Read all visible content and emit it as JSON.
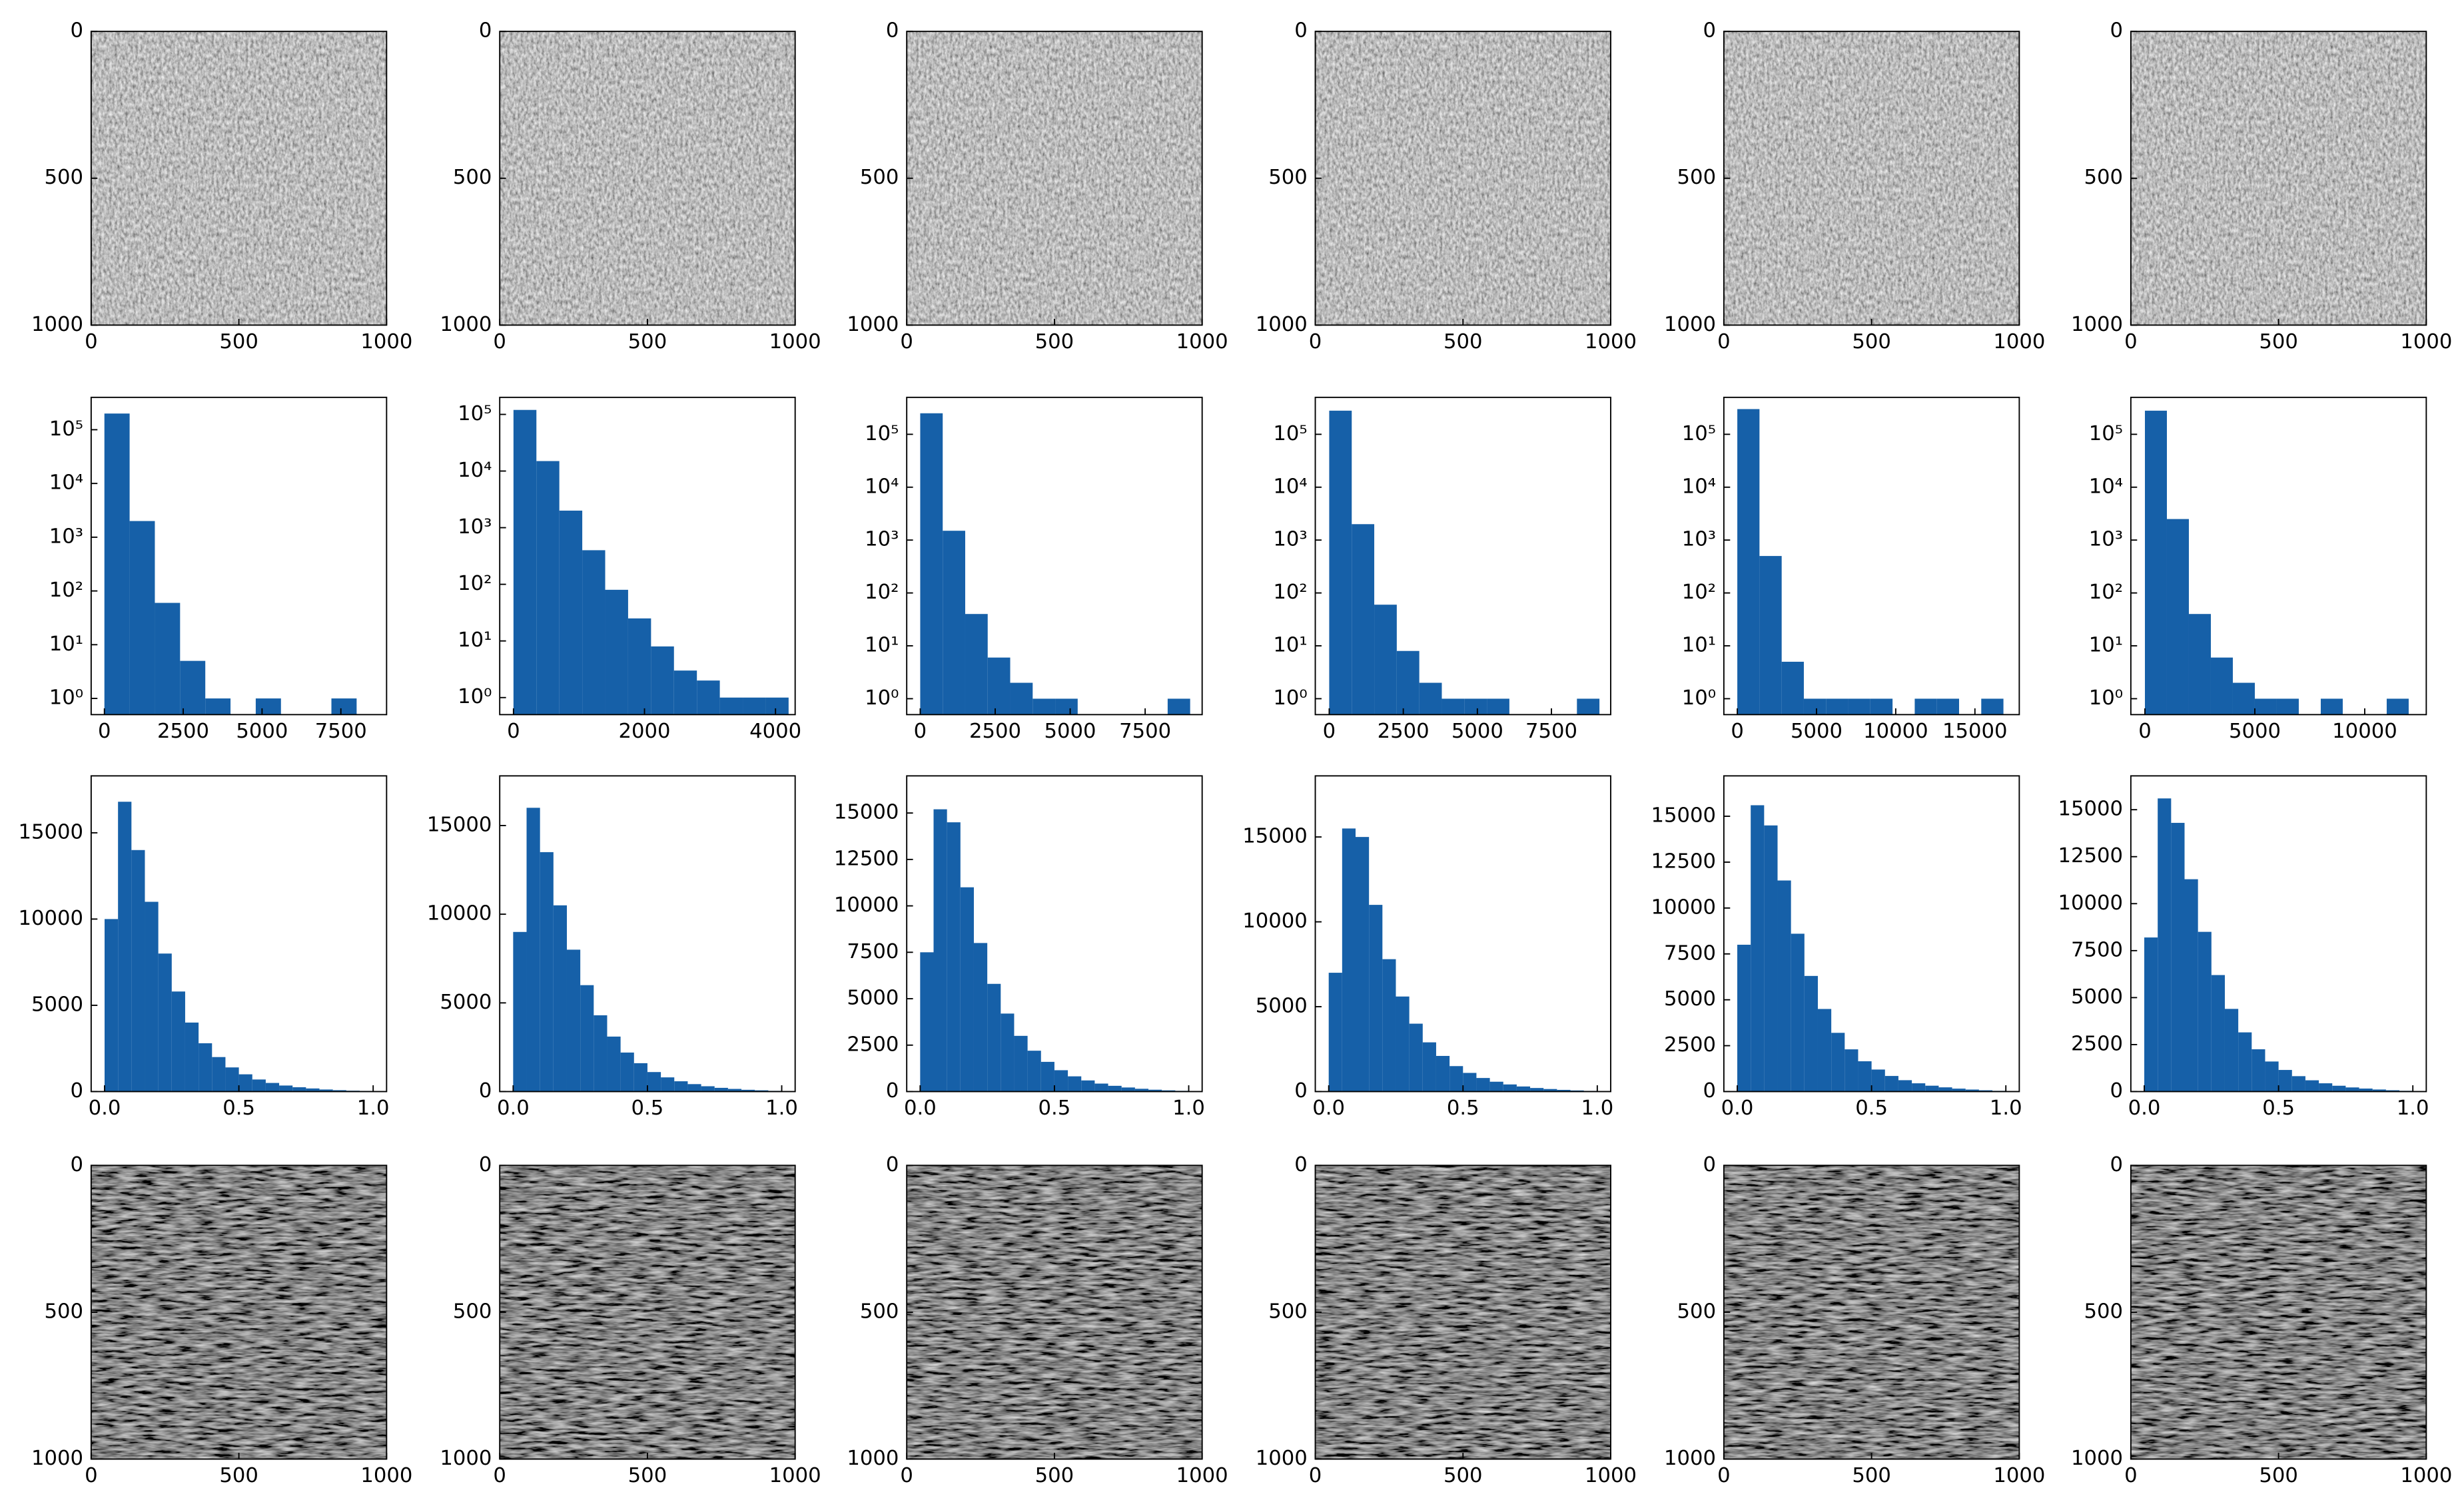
{
  "chart_data": [
    {
      "type": "image",
      "xlim": [
        0,
        1000
      ],
      "ylim": [
        1000,
        0
      ],
      "xticks": [
        0,
        500,
        1000
      ],
      "yticks": [
        0,
        500,
        1000
      ]
    },
    {
      "type": "image",
      "xlim": [
        0,
        1000
      ],
      "ylim": [
        1000,
        0
      ],
      "xticks": [
        0,
        500,
        1000
      ],
      "yticks": [
        0,
        500,
        1000
      ]
    },
    {
      "type": "image",
      "xlim": [
        0,
        1000
      ],
      "ylim": [
        1000,
        0
      ],
      "xticks": [
        0,
        500,
        1000
      ],
      "yticks": [
        0,
        500,
        1000
      ]
    },
    {
      "type": "image",
      "xlim": [
        0,
        1000
      ],
      "ylim": [
        1000,
        0
      ],
      "xticks": [
        0,
        500,
        1000
      ],
      "yticks": [
        0,
        500,
        1000
      ]
    },
    {
      "type": "image",
      "xlim": [
        0,
        1000
      ],
      "ylim": [
        1000,
        0
      ],
      "xticks": [
        0,
        500,
        1000
      ],
      "yticks": [
        0,
        500,
        1000
      ]
    },
    {
      "type": "image",
      "xlim": [
        0,
        1000
      ],
      "ylim": [
        1000,
        0
      ],
      "xticks": [
        0,
        500,
        1000
      ],
      "yticks": [
        0,
        500,
        1000
      ]
    },
    {
      "type": "histogram",
      "log_y": true,
      "color": "#1660a8",
      "bins": [
        0,
        800,
        1600,
        2400,
        3200,
        4000,
        4800,
        5600,
        6400,
        7200,
        8000,
        8800
      ],
      "values": [
        200000,
        2000,
        60,
        5,
        1,
        0,
        1,
        0,
        0,
        1,
        0
      ],
      "xlim": [
        -420,
        8950
      ],
      "ylim": [
        0.5,
        400000
      ],
      "xticks": [
        0,
        2500,
        5000,
        7500
      ],
      "yticks": [
        {
          "value": 1,
          "label": "10⁰"
        },
        {
          "value": 10,
          "label": "10¹"
        },
        {
          "value": 100,
          "label": "10²"
        },
        {
          "value": 1000,
          "label": "10³"
        },
        {
          "value": 10000,
          "label": "10⁴"
        },
        {
          "value": 100000,
          "label": "10⁵"
        }
      ]
    },
    {
      "type": "histogram",
      "log_y": true,
      "color": "#1660a8",
      "bins": [
        0,
        350,
        700,
        1050,
        1400,
        1750,
        2100,
        2450,
        2800,
        3150,
        3500,
        3850,
        4200
      ],
      "values": [
        120000,
        15000,
        2000,
        400,
        80,
        25,
        8,
        3,
        2,
        1,
        1,
        1
      ],
      "xlim": [
        -210,
        4300
      ],
      "ylim": [
        0.5,
        200000
      ],
      "xticks": [
        0,
        2000,
        4000
      ],
      "yticks": [
        {
          "value": 1,
          "label": "10⁰"
        },
        {
          "value": 10,
          "label": "10¹"
        },
        {
          "value": 100,
          "label": "10²"
        },
        {
          "value": 1000,
          "label": "10³"
        },
        {
          "value": 10000,
          "label": "10⁴"
        },
        {
          "value": 100000,
          "label": "10⁵"
        }
      ]
    },
    {
      "type": "histogram",
      "log_y": true,
      "color": "#1660a8",
      "bins": [
        0,
        750,
        1500,
        2250,
        3000,
        3750,
        4500,
        5250,
        6000,
        6750,
        7500,
        8250,
        9000
      ],
      "values": [
        250000,
        1500,
        40,
        6,
        2,
        1,
        1,
        0,
        0,
        0,
        0,
        1
      ],
      "xlim": [
        -450,
        9400
      ],
      "ylim": [
        0.5,
        500000
      ],
      "xticks": [
        0,
        2500,
        5000,
        7500
      ],
      "yticks": [
        {
          "value": 1,
          "label": "10⁰"
        },
        {
          "value": 10,
          "label": "10¹"
        },
        {
          "value": 100,
          "label": "10²"
        },
        {
          "value": 1000,
          "label": "10³"
        },
        {
          "value": 10000,
          "label": "10⁴"
        },
        {
          "value": 100000,
          "label": "10⁵"
        }
      ]
    },
    {
      "type": "histogram",
      "log_y": true,
      "color": "#1660a8",
      "bins": [
        0,
        760,
        1520,
        2280,
        3040,
        3800,
        4560,
        5320,
        6080,
        6840,
        7600,
        8360,
        9120
      ],
      "values": [
        280000,
        2000,
        60,
        8,
        2,
        1,
        1,
        1,
        0,
        0,
        0,
        1
      ],
      "xlim": [
        -470,
        9500
      ],
      "ylim": [
        0.5,
        500000
      ],
      "xticks": [
        0,
        2500,
        5000,
        7500
      ],
      "yticks": [
        {
          "value": 1,
          "label": "10⁰"
        },
        {
          "value": 10,
          "label": "10¹"
        },
        {
          "value": 100,
          "label": "10²"
        },
        {
          "value": 1000,
          "label": "10³"
        },
        {
          "value": 10000,
          "label": "10⁴"
        },
        {
          "value": 100000,
          "label": "10⁵"
        }
      ]
    },
    {
      "type": "histogram",
      "log_y": true,
      "color": "#1660a8",
      "bins": [
        0,
        1400,
        2800,
        4200,
        5600,
        7000,
        8400,
        9800,
        11200,
        12600,
        14000,
        15400,
        16800
      ],
      "values": [
        300000,
        500,
        5,
        1,
        1,
        1,
        1,
        0,
        1,
        1,
        0,
        1
      ],
      "xlim": [
        -850,
        17800
      ],
      "ylim": [
        0.5,
        500000
      ],
      "xticks": [
        0,
        5000,
        10000,
        15000
      ],
      "yticks": [
        {
          "value": 1,
          "label": "10⁰"
        },
        {
          "value": 10,
          "label": "10¹"
        },
        {
          "value": 100,
          "label": "10²"
        },
        {
          "value": 1000,
          "label": "10³"
        },
        {
          "value": 10000,
          "label": "10⁴"
        },
        {
          "value": 100000,
          "label": "10⁵"
        }
      ]
    },
    {
      "type": "histogram",
      "log_y": true,
      "color": "#1660a8",
      "bins": [
        0,
        1000,
        2000,
        3000,
        4000,
        5000,
        6000,
        7000,
        8000,
        9000,
        10000,
        11000,
        12000
      ],
      "values": [
        280000,
        2500,
        40,
        6,
        2,
        1,
        1,
        0,
        1,
        0,
        0,
        1
      ],
      "xlim": [
        -640,
        12800
      ],
      "ylim": [
        0.5,
        500000
      ],
      "xticks": [
        0,
        5000,
        10000
      ],
      "yticks": [
        {
          "value": 1,
          "label": "10⁰"
        },
        {
          "value": 10,
          "label": "10¹"
        },
        {
          "value": 100,
          "label": "10²"
        },
        {
          "value": 1000,
          "label": "10³"
        },
        {
          "value": 10000,
          "label": "10⁴"
        },
        {
          "value": 100000,
          "label": "10⁵"
        }
      ]
    },
    {
      "type": "histogram",
      "color": "#1660a8",
      "bins": [
        0,
        0.05,
        0.1,
        0.15,
        0.2,
        0.25,
        0.3,
        0.35,
        0.4,
        0.45,
        0.5,
        0.55,
        0.6,
        0.65,
        0.7,
        0.75,
        0.8,
        0.85,
        0.9,
        0.95,
        1
      ],
      "values": [
        10000,
        16800,
        14000,
        11000,
        8000,
        5800,
        4000,
        2800,
        2000,
        1400,
        1000,
        700,
        500,
        350,
        250,
        180,
        120,
        80,
        50,
        30
      ],
      "xlim": [
        -0.05,
        1.05
      ],
      "ylim": [
        0,
        18300
      ],
      "xticks": [
        {
          "value": 0,
          "label": "0.0"
        },
        {
          "value": 0.5,
          "label": "0.5"
        },
        {
          "value": 1,
          "label": "1.0"
        }
      ],
      "yticks": [
        0,
        5000,
        10000,
        15000
      ]
    },
    {
      "type": "histogram",
      "color": "#1660a8",
      "bins": [
        0,
        0.05,
        0.1,
        0.15,
        0.2,
        0.25,
        0.3,
        0.35,
        0.4,
        0.45,
        0.5,
        0.55,
        0.6,
        0.65,
        0.7,
        0.75,
        0.8,
        0.85,
        0.9,
        0.95,
        1
      ],
      "values": [
        9000,
        16000,
        13500,
        10500,
        8000,
        6000,
        4300,
        3100,
        2200,
        1600,
        1100,
        800,
        580,
        420,
        300,
        210,
        150,
        100,
        70,
        40
      ],
      "xlim": [
        -0.05,
        1.05
      ],
      "ylim": [
        0,
        17800
      ],
      "xticks": [
        {
          "value": 0,
          "label": "0.0"
        },
        {
          "value": 0.5,
          "label": "0.5"
        },
        {
          "value": 1,
          "label": "1.0"
        }
      ],
      "yticks": [
        0,
        5000,
        10000,
        15000
      ]
    },
    {
      "type": "histogram",
      "color": "#1660a8",
      "bins": [
        0,
        0.05,
        0.1,
        0.15,
        0.2,
        0.25,
        0.3,
        0.35,
        0.4,
        0.45,
        0.5,
        0.55,
        0.6,
        0.65,
        0.7,
        0.75,
        0.8,
        0.85,
        0.9,
        0.95,
        1
      ],
      "values": [
        7500,
        15200,
        14500,
        11000,
        8000,
        5800,
        4200,
        3000,
        2200,
        1600,
        1150,
        820,
        600,
        430,
        310,
        220,
        150,
        100,
        65,
        40
      ],
      "xlim": [
        -0.05,
        1.05
      ],
      "ylim": [
        0,
        17000
      ],
      "xticks": [
        {
          "value": 0,
          "label": "0.0"
        },
        {
          "value": 0.5,
          "label": "0.5"
        },
        {
          "value": 1,
          "label": "1.0"
        }
      ],
      "yticks": [
        0,
        2500,
        5000,
        7500,
        10000,
        12500,
        15000
      ]
    },
    {
      "type": "histogram",
      "color": "#1660a8",
      "bins": [
        0,
        0.05,
        0.1,
        0.15,
        0.2,
        0.25,
        0.3,
        0.35,
        0.4,
        0.45,
        0.5,
        0.55,
        0.6,
        0.65,
        0.7,
        0.75,
        0.8,
        0.85,
        0.9,
        0.95,
        1
      ],
      "values": [
        7000,
        15500,
        15000,
        11000,
        7800,
        5600,
        4000,
        2900,
        2100,
        1500,
        1100,
        800,
        580,
        420,
        300,
        210,
        150,
        100,
        65,
        40
      ],
      "xlim": [
        -0.05,
        1.05
      ],
      "ylim": [
        0,
        18600
      ],
      "xticks": [
        {
          "value": 0,
          "label": "0.0"
        },
        {
          "value": 0.5,
          "label": "0.5"
        },
        {
          "value": 1,
          "label": "1.0"
        }
      ],
      "yticks": [
        0,
        5000,
        10000,
        15000
      ]
    },
    {
      "type": "histogram",
      "color": "#1660a8",
      "bins": [
        0,
        0.05,
        0.1,
        0.15,
        0.2,
        0.25,
        0.3,
        0.35,
        0.4,
        0.45,
        0.5,
        0.55,
        0.6,
        0.65,
        0.7,
        0.75,
        0.8,
        0.85,
        0.9,
        0.95,
        1
      ],
      "values": [
        8000,
        15600,
        14500,
        11500,
        8600,
        6300,
        4500,
        3200,
        2300,
        1650,
        1200,
        850,
        620,
        450,
        320,
        230,
        160,
        110,
        70,
        40
      ],
      "xlim": [
        -0.05,
        1.05
      ],
      "ylim": [
        0,
        17200
      ],
      "xticks": [
        {
          "value": 0,
          "label": "0.0"
        },
        {
          "value": 0.5,
          "label": "0.5"
        },
        {
          "value": 1,
          "label": "1.0"
        }
      ],
      "yticks": [
        0,
        2500,
        5000,
        7500,
        10000,
        12500,
        15000
      ]
    },
    {
      "type": "histogram",
      "color": "#1660a8",
      "bins": [
        0,
        0.05,
        0.1,
        0.15,
        0.2,
        0.25,
        0.3,
        0.35,
        0.4,
        0.45,
        0.5,
        0.55,
        0.6,
        0.65,
        0.7,
        0.75,
        0.8,
        0.85,
        0.9,
        0.95,
        1
      ],
      "values": [
        8200,
        15600,
        14300,
        11300,
        8500,
        6200,
        4400,
        3150,
        2250,
        1600,
        1150,
        820,
        600,
        440,
        310,
        220,
        160,
        110,
        70,
        40
      ],
      "xlim": [
        -0.05,
        1.05
      ],
      "ylim": [
        0,
        16800
      ],
      "xticks": [
        {
          "value": 0,
          "label": "0.0"
        },
        {
          "value": 0.5,
          "label": "0.5"
        },
        {
          "value": 1,
          "label": "1.0"
        }
      ],
      "yticks": [
        0,
        2500,
        5000,
        7500,
        10000,
        12500,
        15000
      ]
    },
    {
      "type": "image",
      "xlim": [
        0,
        1000
      ],
      "ylim": [
        1000,
        0
      ],
      "xticks": [
        0,
        500,
        1000
      ],
      "yticks": [
        0,
        500,
        1000
      ]
    },
    {
      "type": "image",
      "xlim": [
        0,
        1000
      ],
      "ylim": [
        1000,
        0
      ],
      "xticks": [
        0,
        500,
        1000
      ],
      "yticks": [
        0,
        500,
        1000
      ]
    },
    {
      "type": "image",
      "xlim": [
        0,
        1000
      ],
      "ylim": [
        1000,
        0
      ],
      "xticks": [
        0,
        500,
        1000
      ],
      "yticks": [
        0,
        500,
        1000
      ]
    },
    {
      "type": "image",
      "xlim": [
        0,
        1000
      ],
      "ylim": [
        1000,
        0
      ],
      "xticks": [
        0,
        500,
        1000
      ],
      "yticks": [
        0,
        500,
        1000
      ]
    },
    {
      "type": "image",
      "xlim": [
        0,
        1000
      ],
      "ylim": [
        1000,
        0
      ],
      "xticks": [
        0,
        500,
        1000
      ],
      "yticks": [
        0,
        500,
        1000
      ]
    },
    {
      "type": "image",
      "xlim": [
        0,
        1000
      ],
      "ylim": [
        1000,
        0
      ],
      "xticks": [
        0,
        500,
        1000
      ],
      "yticks": [
        0,
        500,
        1000
      ]
    }
  ]
}
